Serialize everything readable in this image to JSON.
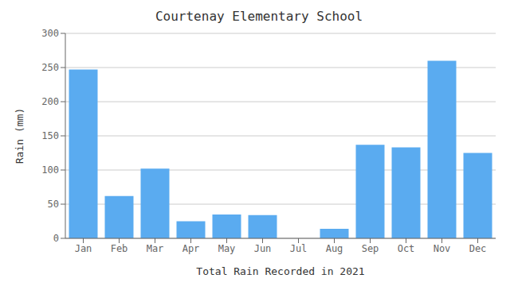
{
  "chart_data": {
    "type": "bar",
    "title": "Courtenay Elementary School",
    "xlabel": "Total Rain Recorded in 2021",
    "ylabel": "Rain (mm)",
    "categories": [
      "Jan",
      "Feb",
      "Mar",
      "Apr",
      "May",
      "Jun",
      "Jul",
      "Aug",
      "Sep",
      "Oct",
      "Nov",
      "Dec"
    ],
    "values": [
      247,
      62,
      102,
      25,
      35,
      34,
      0,
      14,
      137,
      133,
      260,
      125
    ],
    "color": "#5aabf0",
    "ylim": [
      0,
      300
    ],
    "yticks": [
      0,
      50,
      100,
      150,
      200,
      250,
      300
    ],
    "grid": true
  }
}
